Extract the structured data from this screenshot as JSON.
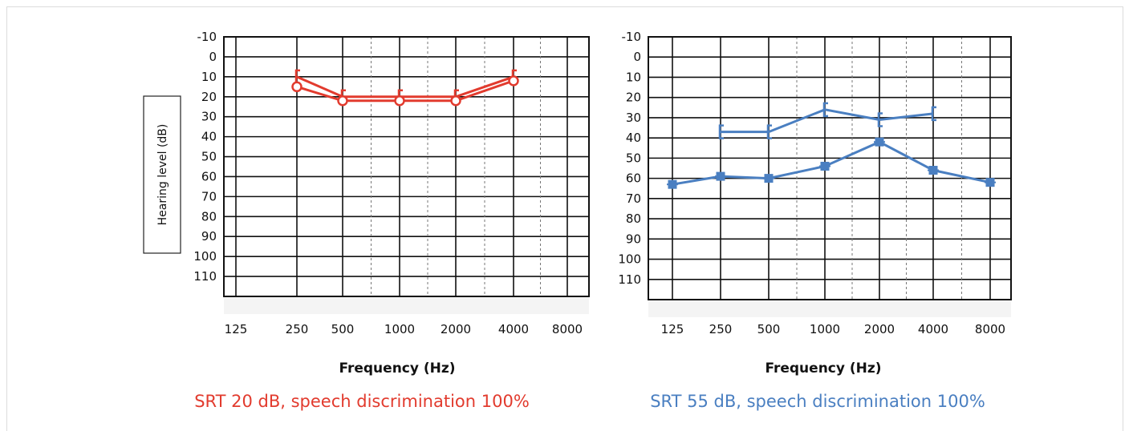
{
  "chart_data": [
    {
      "type": "line",
      "ylabel": "Hearing level (dB)",
      "xlabel": "Frequency (Hz)",
      "caption": "SRT 20 dB, speech discrimination 100%",
      "categories": [
        "125",
        "250",
        "500",
        "1000",
        "2000",
        "4000",
        "8000"
      ],
      "y_ticks": [
        "-10",
        "0",
        "10",
        "20",
        "30",
        "40",
        "50",
        "60",
        "70",
        "80",
        "90",
        "100",
        "110"
      ],
      "ylim": [
        -10,
        120
      ],
      "y_inverted": true,
      "grid": true,
      "series_color": "#e23b2e",
      "series": [
        {
          "marker": "bracket",
          "x": [
            "250",
            "500",
            "1000",
            "2000",
            "4000"
          ],
          "values": [
            10,
            20,
            20,
            20,
            10
          ]
        },
        {
          "marker": "circle",
          "x": [
            "250",
            "500",
            "1000",
            "2000",
            "4000"
          ],
          "values": [
            15,
            22,
            22,
            22,
            12
          ]
        }
      ]
    },
    {
      "type": "line",
      "ylabel": "",
      "xlabel": "Frequency (Hz)",
      "caption": "SRT 55 dB, speech discrimination 100%",
      "categories": [
        "125",
        "250",
        "500",
        "1000",
        "2000",
        "4000",
        "8000"
      ],
      "y_ticks": [
        "-10",
        "0",
        "10",
        "20",
        "30",
        "40",
        "50",
        "60",
        "70",
        "80",
        "90",
        "100",
        "110"
      ],
      "ylim": [
        -10,
        120
      ],
      "y_inverted": true,
      "grid": true,
      "series_color": "#4a7fc1",
      "series": [
        {
          "marker": "bracket",
          "x": [
            "250",
            "500",
            "1000",
            "2000",
            "4000"
          ],
          "values": [
            37,
            37,
            26,
            31,
            28
          ]
        },
        {
          "marker": "square",
          "x": [
            "125",
            "250",
            "500",
            "1000",
            "2000",
            "4000",
            "8000"
          ],
          "values": [
            63,
            59,
            60,
            54,
            42,
            56,
            62
          ]
        }
      ]
    }
  ]
}
